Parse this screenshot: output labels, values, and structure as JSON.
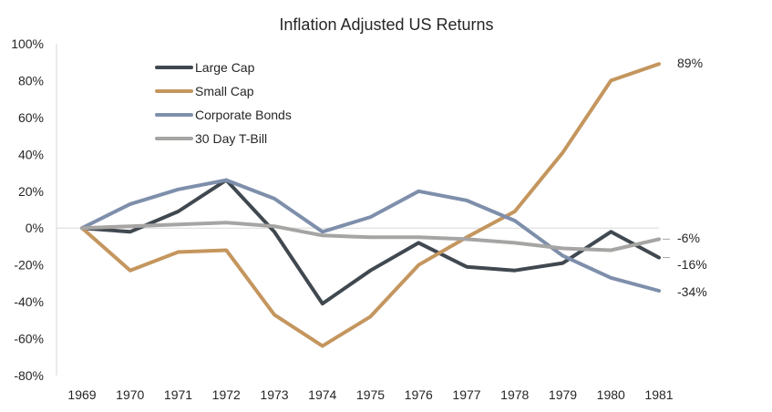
{
  "chart_data": {
    "type": "line",
    "title": "Inflation Adjusted US Returns",
    "xlabel": "",
    "ylabel": "",
    "categories": [
      "1969",
      "1970",
      "1971",
      "1972",
      "1973",
      "1974",
      "1975",
      "1976",
      "1977",
      "1978",
      "1979",
      "1980",
      "1981"
    ],
    "ylim": [
      -80,
      100
    ],
    "yticks": [
      100,
      80,
      60,
      40,
      20,
      0,
      -20,
      -40,
      -60,
      -80
    ],
    "ytick_labels": [
      "100%",
      "80%",
      "60%",
      "40%",
      "20%",
      "0%",
      "-20%",
      "-40%",
      "-60%",
      "-80%"
    ],
    "grid": false,
    "legend_position": "top-left",
    "series": [
      {
        "name": "Large Cap",
        "color": "#404850",
        "values": [
          0,
          -2,
          9,
          26,
          -2,
          -41,
          -23,
          -8,
          -21,
          -23,
          -19,
          -2,
          -16
        ]
      },
      {
        "name": "Small Cap",
        "color": "#C4965E",
        "values": [
          0,
          -23,
          -13,
          -12,
          -47,
          -64,
          -48,
          -20,
          -5,
          9,
          41,
          80,
          89
        ]
      },
      {
        "name": "Corporate Bonds",
        "color": "#7E8FAB",
        "values": [
          0,
          13,
          21,
          26,
          16,
          -2,
          6,
          20,
          15,
          4,
          -15,
          -27,
          -34
        ]
      },
      {
        "name": "30 Day T-Bill",
        "color": "#A6A5A3",
        "values": [
          0,
          1,
          2,
          3,
          1,
          -4,
          -5,
          -5,
          -6,
          -8,
          -11,
          -12,
          -6
        ]
      }
    ],
    "end_labels": [
      {
        "series": "Small Cap",
        "text": "89%"
      },
      {
        "series": "30 Day T-Bill",
        "text": "-6%"
      },
      {
        "series": "Large Cap",
        "text": "-16%"
      },
      {
        "series": "Corporate Bonds",
        "text": "-34%"
      }
    ]
  }
}
